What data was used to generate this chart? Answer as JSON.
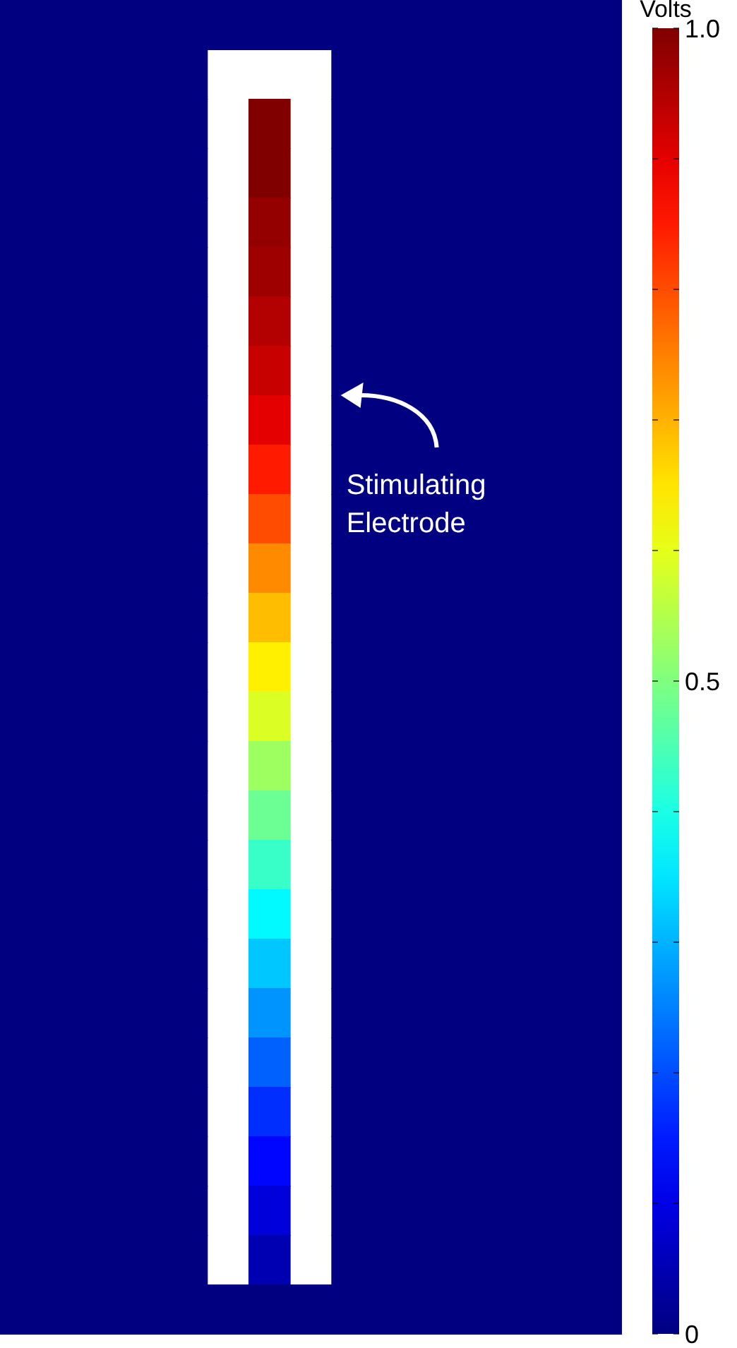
{
  "chart_data": {
    "type": "heatmap",
    "clabel": "Volts",
    "clim": [
      0,
      1
    ],
    "cticks": [
      0,
      {
        "value": 0.1,
        "label": null
      },
      {
        "value": 0.2,
        "label": null
      },
      {
        "value": 0.3,
        "label": null
      },
      {
        "value": 0.4,
        "label": null
      },
      0.5,
      {
        "value": 0.6,
        "label": null
      },
      {
        "value": 0.7,
        "label": null
      },
      {
        "value": 0.8,
        "label": null
      },
      {
        "value": 0.9,
        "label": null
      },
      {
        "value": 1,
        "label": "1.0"
      }
    ],
    "categories": [
      null,
      null,
      null,
      null,
      null,
      null,
      null,
      null,
      null,
      null,
      null,
      null,
      null,
      null,
      null
    ],
    "y_categories": [
      null,
      null,
      null,
      null,
      null,
      null,
      null,
      null,
      null,
      null,
      null,
      null,
      null,
      null,
      null,
      null,
      null,
      null,
      null,
      null,
      null,
      null,
      null,
      null,
      null,
      null,
      null
    ],
    "annotations": [
      "Stimulating Electrode"
    ],
    "cells": [
      [
        0,
        0,
        0,
        0,
        0,
        0,
        0,
        0,
        0,
        0,
        0,
        0,
        0,
        0,
        0
      ],
      [
        0,
        0,
        0,
        0,
        0,
        null,
        null,
        null,
        0,
        0,
        0,
        0,
        0,
        0,
        0
      ],
      [
        0,
        0,
        0,
        0,
        0,
        null,
        1.0,
        null,
        0,
        0,
        0,
        0,
        0,
        0,
        0
      ],
      [
        0,
        0,
        0,
        0,
        0,
        null,
        1.0,
        null,
        0,
        0,
        0,
        0,
        0,
        0,
        0
      ],
      [
        0,
        0,
        0,
        0,
        0,
        null,
        0.98,
        null,
        0,
        0,
        0,
        0,
        0,
        0,
        0
      ],
      [
        0,
        0,
        0,
        0,
        0,
        null,
        0.97,
        null,
        0,
        0,
        0,
        0,
        0,
        0,
        0
      ],
      [
        0,
        0,
        0,
        0,
        0,
        null,
        0.95,
        null,
        0,
        0,
        0,
        0,
        0,
        0,
        0
      ],
      [
        0,
        0,
        0,
        0,
        0,
        null,
        0.93,
        null,
        0,
        0,
        0,
        0,
        0,
        0,
        0
      ],
      [
        0,
        0,
        0,
        0,
        0,
        null,
        0.9,
        null,
        0,
        0,
        0,
        0,
        0,
        0,
        0
      ],
      [
        0,
        0,
        0,
        0,
        0,
        null,
        0.85,
        null,
        0,
        0,
        0,
        0,
        0,
        0,
        0
      ],
      [
        0,
        0,
        0,
        0,
        0,
        null,
        0.8,
        null,
        0,
        0,
        0,
        0,
        0,
        0,
        0
      ],
      [
        0,
        0,
        0,
        0,
        0,
        null,
        0.74,
        null,
        0,
        0,
        0,
        0,
        0,
        0,
        0
      ],
      [
        0,
        0,
        0,
        0,
        0,
        null,
        0.69,
        null,
        0,
        0,
        0,
        0,
        0,
        0,
        0
      ],
      [
        0,
        0,
        0,
        0,
        0,
        null,
        0.64,
        null,
        0,
        0,
        0,
        0,
        0,
        0,
        0
      ],
      [
        0,
        0,
        0,
        0,
        0,
        null,
        0.59,
        null,
        0,
        0,
        0,
        0,
        0,
        0,
        0
      ],
      [
        0,
        0,
        0,
        0,
        0,
        null,
        0.53,
        null,
        0,
        0,
        0,
        0,
        0,
        0,
        0
      ],
      [
        0,
        0,
        0,
        0,
        0,
        null,
        0.48,
        null,
        0,
        0,
        0,
        0,
        0,
        0,
        0
      ],
      [
        0,
        0,
        0,
        0,
        0,
        null,
        0.43,
        null,
        0,
        0,
        0,
        0,
        0,
        0,
        0
      ],
      [
        0,
        0,
        0,
        0,
        0,
        null,
        0.37,
        null,
        0,
        0,
        0,
        0,
        0,
        0,
        0
      ],
      [
        0,
        0,
        0,
        0,
        0,
        null,
        0.32,
        null,
        0,
        0,
        0,
        0,
        0,
        0,
        0
      ],
      [
        0,
        0,
        0,
        0,
        0,
        null,
        0.27,
        null,
        0,
        0,
        0,
        0,
        0,
        0,
        0
      ],
      [
        0,
        0,
        0,
        0,
        0,
        null,
        0.22,
        null,
        0,
        0,
        0,
        0,
        0,
        0,
        0
      ],
      [
        0,
        0,
        0,
        0,
        0,
        null,
        0.17,
        null,
        0,
        0,
        0,
        0,
        0,
        0,
        0
      ],
      [
        0,
        0,
        0,
        0,
        0,
        null,
        0.13,
        null,
        0,
        0,
        0,
        0,
        0,
        0,
        0
      ],
      [
        0,
        0,
        0,
        0,
        0,
        null,
        0.09,
        null,
        0,
        0,
        0,
        0,
        0,
        0,
        0
      ],
      [
        0,
        0,
        0,
        0,
        0,
        null,
        0.05,
        null,
        0,
        0,
        0,
        0,
        0,
        0,
        0
      ],
      [
        0,
        0,
        0,
        0,
        0,
        0,
        0,
        0,
        0,
        0,
        0,
        0,
        0,
        0,
        0
      ]
    ]
  }
}
